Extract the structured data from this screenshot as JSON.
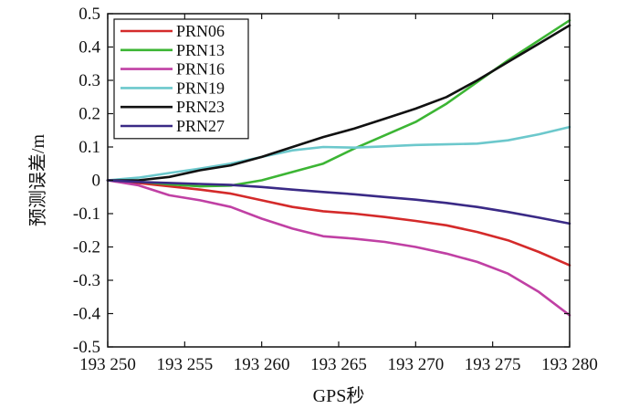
{
  "chart_data": {
    "type": "line",
    "title": "",
    "xlabel": "GPS秒",
    "ylabel": "预测误差/m",
    "xlim": [
      193250,
      193280
    ],
    "ylim": [
      -0.5,
      0.5
    ],
    "x_ticks": [
      193250,
      193255,
      193260,
      193265,
      193270,
      193275,
      193280
    ],
    "x_tick_labels": [
      "193 250",
      "193 255",
      "193 260",
      "193 265",
      "193 270",
      "193 275",
      "193 280"
    ],
    "y_ticks": [
      -0.5,
      -0.4,
      -0.3,
      -0.2,
      -0.1,
      0,
      0.1,
      0.2,
      0.3,
      0.4,
      0.5
    ],
    "y_tick_labels": [
      "-0.5",
      "-0.4",
      "-0.3",
      "-0.2",
      "-0.1",
      "0",
      "0.1",
      "0.2",
      "0.3",
      "0.4",
      "0.5"
    ],
    "grid": false,
    "legend_position": "top-left",
    "series": [
      {
        "name": "PRN06",
        "color": "#d42a2a",
        "x": [
          193250,
          193252,
          193254,
          193256,
          193258,
          193260,
          193262,
          193264,
          193266,
          193268,
          193270,
          193272,
          193274,
          193276,
          193278,
          193280
        ],
        "y": [
          0,
          -0.008,
          -0.018,
          -0.028,
          -0.04,
          -0.06,
          -0.08,
          -0.093,
          -0.1,
          -0.11,
          -0.122,
          -0.135,
          -0.155,
          -0.18,
          -0.215,
          -0.255
        ]
      },
      {
        "name": "PRN13",
        "color": "#3cb534",
        "x": [
          193250,
          193252,
          193254,
          193256,
          193258,
          193260,
          193262,
          193264,
          193266,
          193268,
          193270,
          193272,
          193274,
          193276,
          193278,
          193280
        ],
        "y": [
          0,
          -0.004,
          -0.012,
          -0.018,
          -0.016,
          0.0,
          0.025,
          0.05,
          0.095,
          0.135,
          0.175,
          0.23,
          0.295,
          0.36,
          0.42,
          0.48
        ]
      },
      {
        "name": "PRN16",
        "color": "#c040a4",
        "x": [
          193250,
          193252,
          193254,
          193256,
          193258,
          193260,
          193262,
          193264,
          193266,
          193268,
          193270,
          193272,
          193274,
          193276,
          193278,
          193280
        ],
        "y": [
          0,
          -0.015,
          -0.045,
          -0.06,
          -0.08,
          -0.115,
          -0.145,
          -0.168,
          -0.175,
          -0.185,
          -0.2,
          -0.22,
          -0.245,
          -0.28,
          -0.335,
          -0.405
        ]
      },
      {
        "name": "PRN19",
        "color": "#6cc8cc",
        "x": [
          193250,
          193252,
          193254,
          193256,
          193258,
          193260,
          193262,
          193264,
          193266,
          193268,
          193270,
          193272,
          193274,
          193276,
          193278,
          193280
        ],
        "y": [
          0,
          0.008,
          0.022,
          0.035,
          0.05,
          0.07,
          0.09,
          0.1,
          0.098,
          0.102,
          0.106,
          0.108,
          0.11,
          0.12,
          0.138,
          0.16
        ]
      },
      {
        "name": "PRN23",
        "color": "#111111",
        "x": [
          193250,
          193252,
          193254,
          193256,
          193258,
          193260,
          193262,
          193264,
          193266,
          193268,
          193270,
          193272,
          193274,
          193276,
          193278,
          193280
        ],
        "y": [
          0,
          0.0,
          0.01,
          0.03,
          0.045,
          0.07,
          0.1,
          0.13,
          0.155,
          0.185,
          0.215,
          0.25,
          0.3,
          0.355,
          0.41,
          0.465
        ]
      },
      {
        "name": "PRN27",
        "color": "#3a2a86",
        "x": [
          193250,
          193252,
          193254,
          193256,
          193258,
          193260,
          193262,
          193264,
          193266,
          193268,
          193270,
          193272,
          193274,
          193276,
          193278,
          193280
        ],
        "y": [
          0,
          -0.005,
          -0.008,
          -0.011,
          -0.014,
          -0.02,
          -0.028,
          -0.035,
          -0.042,
          -0.05,
          -0.058,
          -0.068,
          -0.08,
          -0.095,
          -0.112,
          -0.13
        ]
      }
    ]
  }
}
